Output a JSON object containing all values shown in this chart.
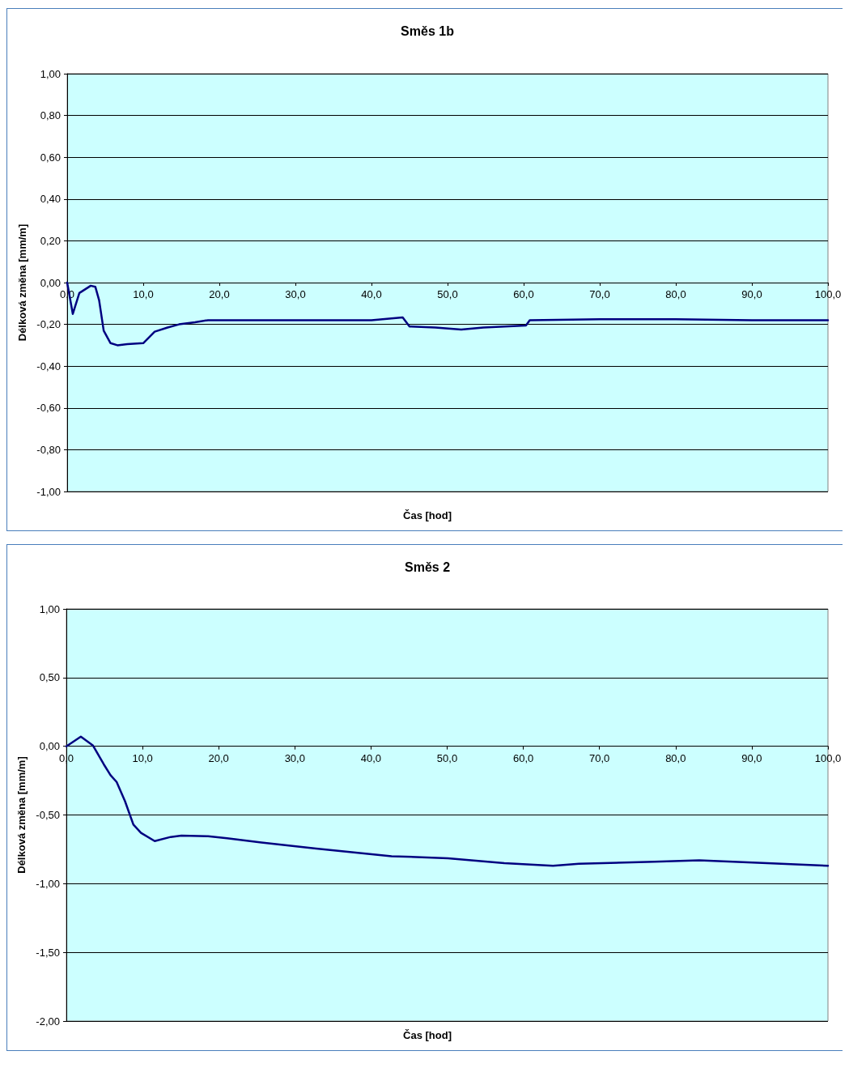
{
  "chart_data": [
    {
      "type": "line",
      "title": "Směs 1b",
      "xlabel": "Čas [hod]",
      "ylabel": "Délková změna [mm/m]",
      "x": [
        0,
        0.74,
        1.6,
        3.1,
        3.7,
        4.2,
        4.8,
        5.7,
        6.6,
        7.9,
        10,
        11.5,
        13.2,
        14.7,
        16.8,
        18.5,
        25,
        30,
        35,
        40,
        44.1,
        45,
        48.4,
        51.8,
        54.7,
        60.3,
        60.8,
        70,
        80,
        90,
        100
      ],
      "series": [
        {
          "color": "#000080",
          "values": [
            0,
            -0.15,
            -0.05,
            -0.015,
            -0.02,
            -0.085,
            -0.23,
            -0.29,
            -0.3,
            -0.295,
            -0.29,
            -0.235,
            -0.215,
            -0.2,
            -0.19,
            -0.18,
            -0.18,
            -0.18,
            -0.18,
            -0.18,
            -0.167,
            -0.21,
            -0.215,
            -0.225,
            -0.215,
            -0.205,
            -0.18,
            -0.175,
            -0.175,
            -0.18,
            -0.18
          ]
        }
      ],
      "xlim": [
        0,
        100
      ],
      "xticks": [
        {
          "value": 0,
          "label": "0,0"
        },
        {
          "value": 10,
          "label": "10,0"
        },
        {
          "value": 20,
          "label": "20,0"
        },
        {
          "value": 30,
          "label": "30,0"
        },
        {
          "value": 40,
          "label": "40,0"
        },
        {
          "value": 50,
          "label": "50,0"
        },
        {
          "value": 60,
          "label": "60,0"
        },
        {
          "value": 70,
          "label": "70,0"
        },
        {
          "value": 80,
          "label": "80,0"
        },
        {
          "value": 90,
          "label": "90,0"
        },
        {
          "value": 100,
          "label": "100,0"
        }
      ],
      "ylim": [
        -1,
        1
      ],
      "yticks": [
        {
          "value": -1,
          "label": "-1,00"
        },
        {
          "value": -0.8,
          "label": "-0,80"
        },
        {
          "value": -0.6,
          "label": "-0,60"
        },
        {
          "value": -0.4,
          "label": "-0,40"
        },
        {
          "value": -0.2,
          "label": "-0,20"
        },
        {
          "value": 0,
          "label": "0,00"
        },
        {
          "value": 0.2,
          "label": "0,20"
        },
        {
          "value": 0.4,
          "label": "0,40"
        },
        {
          "value": 0.6,
          "label": "0,60"
        },
        {
          "value": 0.8,
          "label": "0,80"
        },
        {
          "value": 1,
          "label": "1,00"
        }
      ],
      "grid": "y",
      "marker": "none",
      "line_style": "solid"
    },
    {
      "type": "line",
      "title": "Směs 2",
      "xlabel": "Čas [hod]",
      "ylabel": "Délková změna [mm/m]",
      "x": [
        0,
        1.9,
        3.5,
        4.9,
        5.8,
        6.6,
        7.7,
        8.8,
        9.8,
        11.6,
        13.7,
        15.1,
        18.6,
        21.1,
        25.6,
        32.8,
        42.7,
        50.1,
        57.5,
        63.9,
        67.3,
        77.2,
        83.1,
        92,
        100
      ],
      "series": [
        {
          "color": "#000080",
          "values": [
            0,
            0.07,
            0.005,
            -0.13,
            -0.21,
            -0.26,
            -0.4,
            -0.57,
            -0.63,
            -0.69,
            -0.66,
            -0.65,
            -0.655,
            -0.67,
            -0.7,
            -0.745,
            -0.8,
            -0.815,
            -0.85,
            -0.87,
            -0.855,
            -0.84,
            -0.83,
            -0.85,
            -0.87
          ]
        }
      ],
      "xlim": [
        0,
        100
      ],
      "xticks": [
        {
          "value": 0,
          "label": "0,0"
        },
        {
          "value": 10,
          "label": "10,0"
        },
        {
          "value": 20,
          "label": "20,0"
        },
        {
          "value": 30,
          "label": "30,0"
        },
        {
          "value": 40,
          "label": "40,0"
        },
        {
          "value": 50,
          "label": "50,0"
        },
        {
          "value": 60,
          "label": "60,0"
        },
        {
          "value": 70,
          "label": "70,0"
        },
        {
          "value": 80,
          "label": "80,0"
        },
        {
          "value": 90,
          "label": "90,0"
        },
        {
          "value": 100,
          "label": "100,0"
        }
      ],
      "ylim": [
        -2,
        1
      ],
      "yticks": [
        {
          "value": -2,
          "label": "-2,00"
        },
        {
          "value": -1.5,
          "label": "-1,50"
        },
        {
          "value": -1,
          "label": "-1,00"
        },
        {
          "value": -0.5,
          "label": "-0,50"
        },
        {
          "value": 0,
          "label": "0,00"
        },
        {
          "value": 0.5,
          "label": "0,50"
        },
        {
          "value": 1,
          "label": "1,00"
        }
      ],
      "grid": "y",
      "marker": "none",
      "line_style": "solid"
    }
  ]
}
